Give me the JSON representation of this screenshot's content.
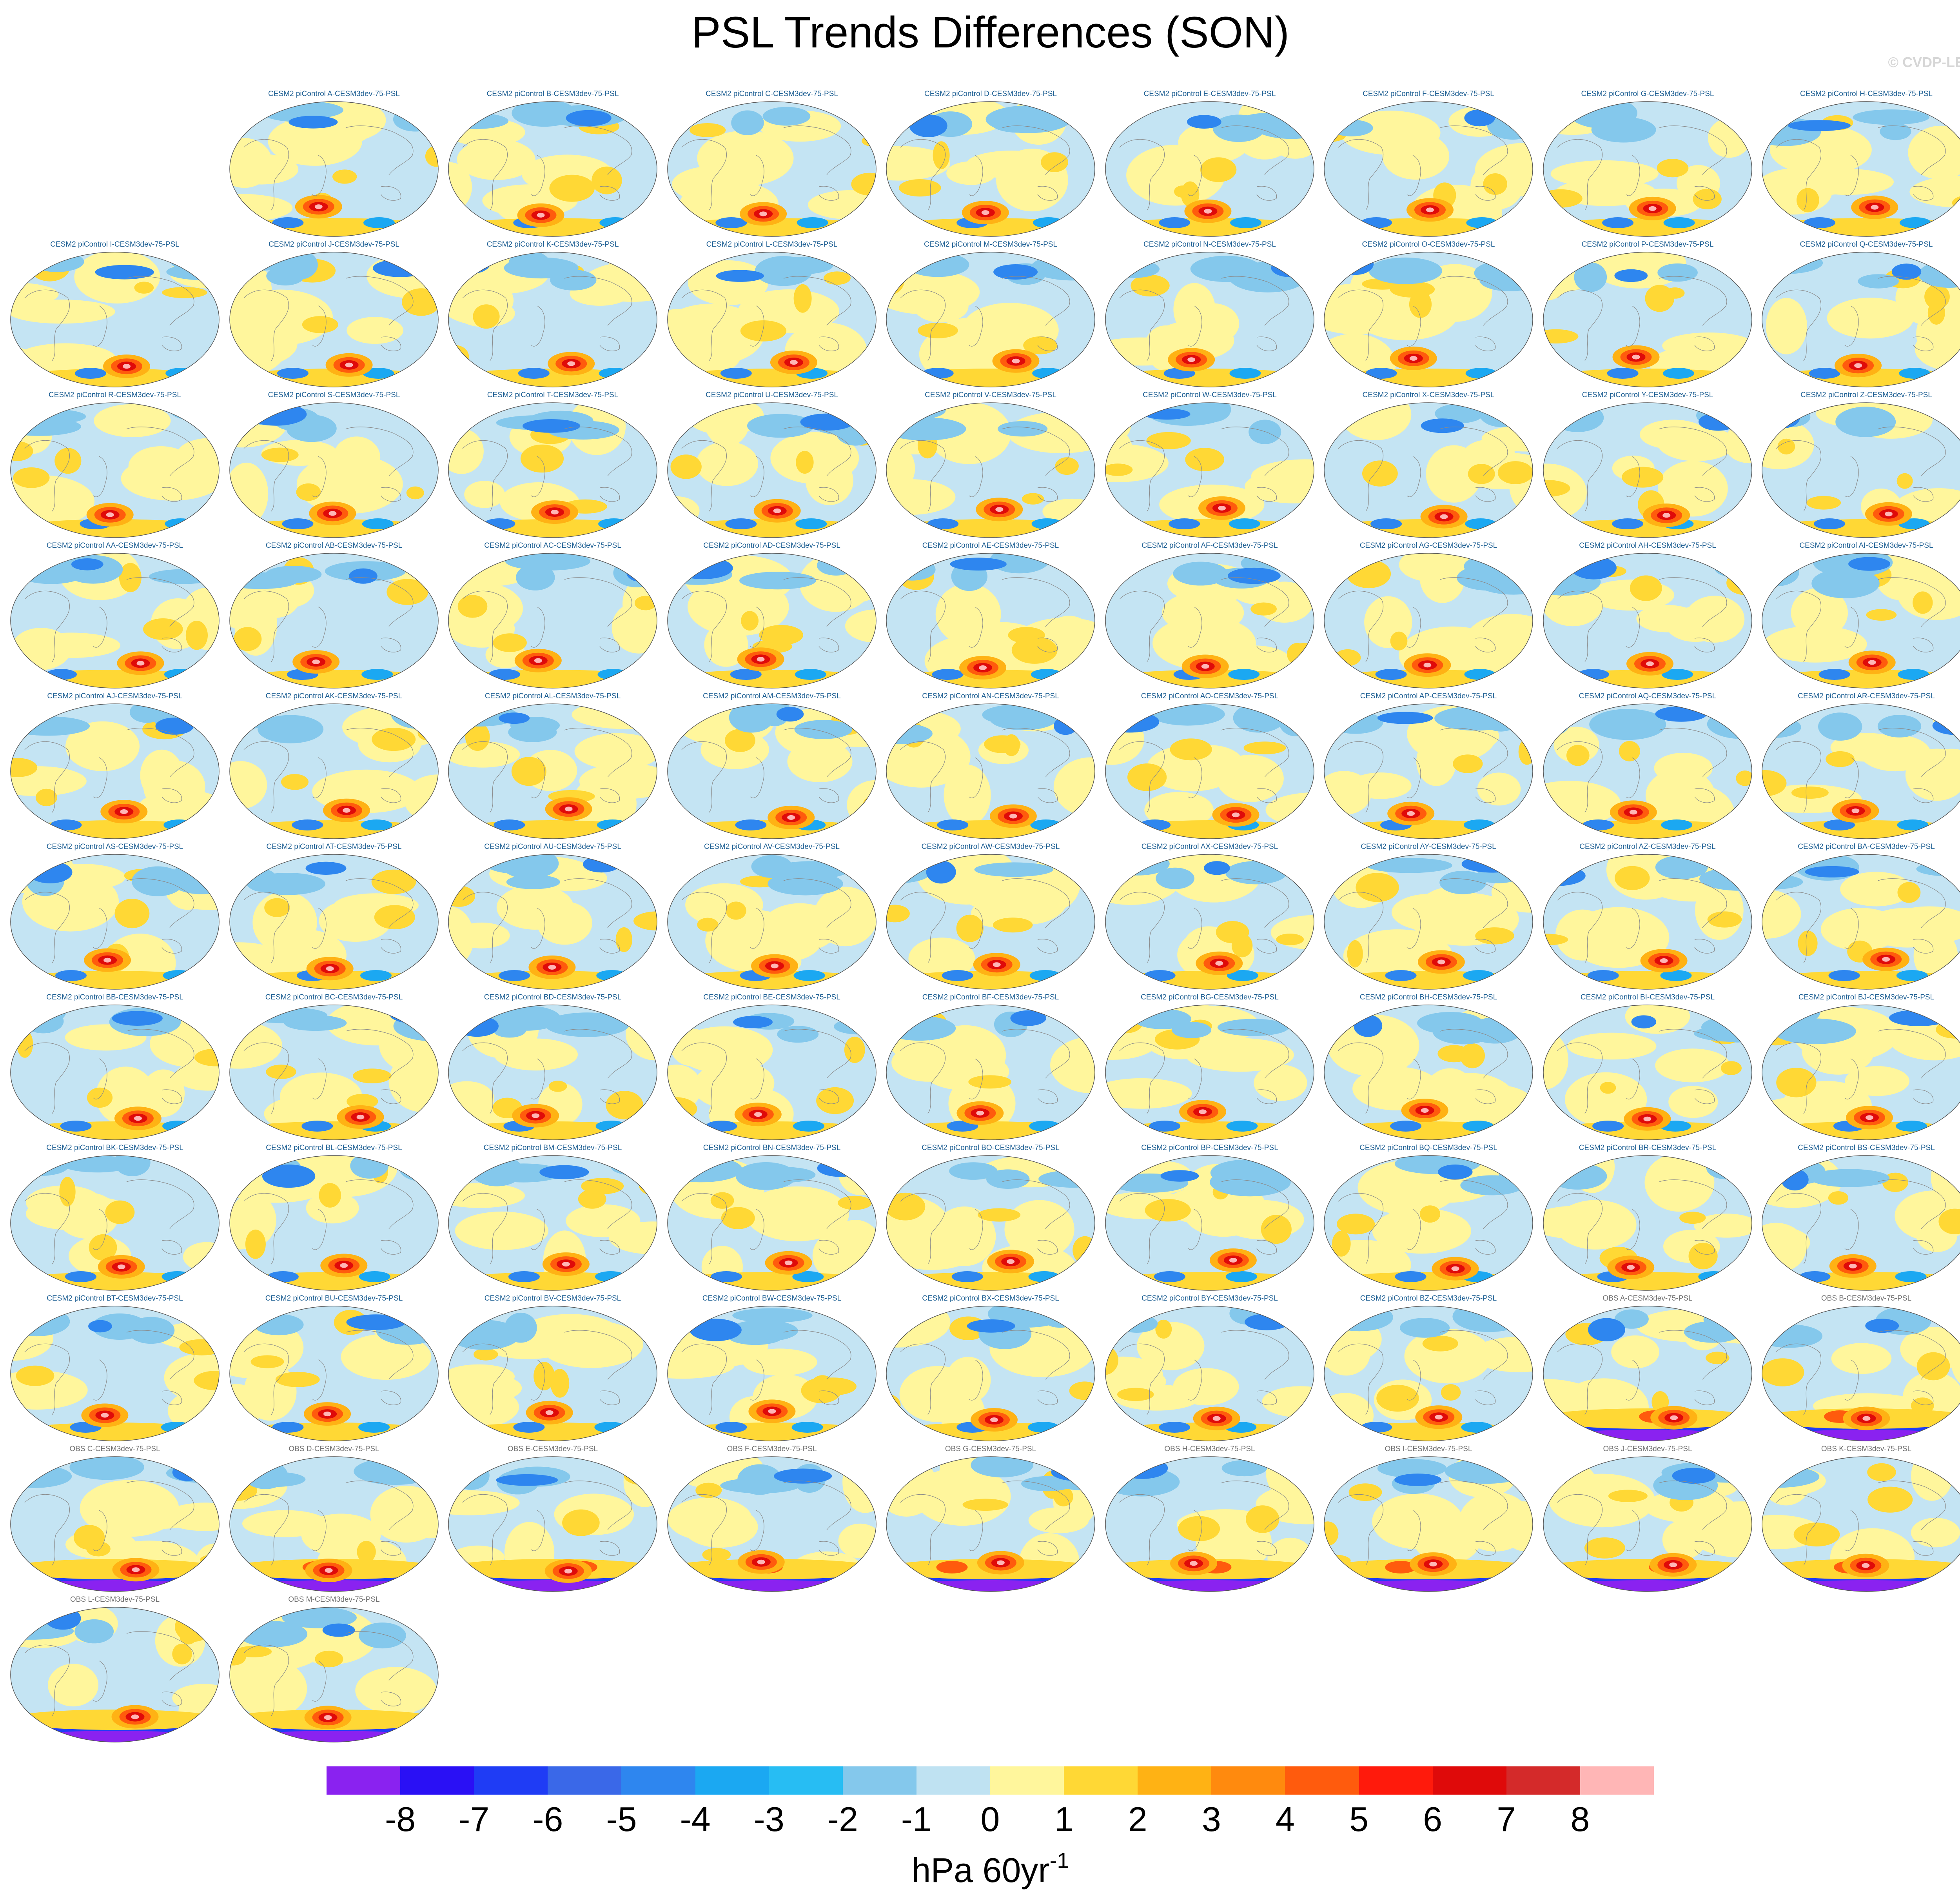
{
  "title": "PSL Trends Differences (SON)",
  "watermark": "© CVDP-LE",
  "chart_data": {
    "type": "heatmap",
    "title": "PSL Trends Differences (SON)",
    "projection": "global map panels",
    "colorbar": {
      "label_base": "hPa 60yr",
      "label_exponent": "-1",
      "ticks": [
        "-8",
        "-7",
        "-6",
        "-5",
        "-4",
        "-3",
        "-2",
        "-1",
        "0",
        "1",
        "2",
        "3",
        "4",
        "5",
        "6",
        "7",
        "8"
      ],
      "levels": [
        -8,
        -7,
        -6,
        -5,
        -4,
        -3,
        -2,
        -1,
        0,
        1,
        2,
        3,
        4,
        5,
        6,
        7,
        8
      ],
      "colors": [
        "#8a22f0",
        "#2a10f5",
        "#1f3cf5",
        "#3a68e8",
        "#2e86ef",
        "#1ba8f2",
        "#27bdf3",
        "#84c8ec",
        "#bfe2f2",
        "#fff69c",
        "#ffd835",
        "#ffb214",
        "#ff8a0e",
        "#ff5b0d",
        "#ff1a0c",
        "#df0a0a",
        "#d42a2a",
        "#ffb6b6"
      ]
    },
    "panels": [
      "CESM2 piControl A-CESM3dev-75-PSL",
      "CESM2 piControl B-CESM3dev-75-PSL",
      "CESM2 piControl C-CESM3dev-75-PSL",
      "CESM2 piControl D-CESM3dev-75-PSL",
      "CESM2 piControl E-CESM3dev-75-PSL",
      "CESM2 piControl F-CESM3dev-75-PSL",
      "CESM2 piControl G-CESM3dev-75-PSL",
      "CESM2 piControl H-CESM3dev-75-PSL",
      "CESM2 piControl I-CESM3dev-75-PSL",
      "CESM2 piControl J-CESM3dev-75-PSL",
      "CESM2 piControl K-CESM3dev-75-PSL",
      "CESM2 piControl L-CESM3dev-75-PSL",
      "CESM2 piControl M-CESM3dev-75-PSL",
      "CESM2 piControl N-CESM3dev-75-PSL",
      "CESM2 piControl O-CESM3dev-75-PSL",
      "CESM2 piControl P-CESM3dev-75-PSL",
      "CESM2 piControl Q-CESM3dev-75-PSL",
      "CESM2 piControl R-CESM3dev-75-PSL",
      "CESM2 piControl S-CESM3dev-75-PSL",
      "CESM2 piControl T-CESM3dev-75-PSL",
      "CESM2 piControl U-CESM3dev-75-PSL",
      "CESM2 piControl V-CESM3dev-75-PSL",
      "CESM2 piControl W-CESM3dev-75-PSL",
      "CESM2 piControl X-CESM3dev-75-PSL",
      "CESM2 piControl Y-CESM3dev-75-PSL",
      "CESM2 piControl Z-CESM3dev-75-PSL",
      "CESM2 piControl AA-CESM3dev-75-PSL",
      "CESM2 piControl AB-CESM3dev-75-PSL",
      "CESM2 piControl AC-CESM3dev-75-PSL",
      "CESM2 piControl AD-CESM3dev-75-PSL",
      "CESM2 piControl AE-CESM3dev-75-PSL",
      "CESM2 piControl AF-CESM3dev-75-PSL",
      "CESM2 piControl AG-CESM3dev-75-PSL",
      "CESM2 piControl AH-CESM3dev-75-PSL",
      "CESM2 piControl AI-CESM3dev-75-PSL",
      "CESM2 piControl AJ-CESM3dev-75-PSL",
      "CESM2 piControl AK-CESM3dev-75-PSL",
      "CESM2 piControl AL-CESM3dev-75-PSL",
      "CESM2 piControl AM-CESM3dev-75-PSL",
      "CESM2 piControl AN-CESM3dev-75-PSL",
      "CESM2 piControl AO-CESM3dev-75-PSL",
      "CESM2 piControl AP-CESM3dev-75-PSL",
      "CESM2 piControl AQ-CESM3dev-75-PSL",
      "CESM2 piControl AR-CESM3dev-75-PSL",
      "CESM2 piControl AS-CESM3dev-75-PSL",
      "CESM2 piControl AT-CESM3dev-75-PSL",
      "CESM2 piControl AU-CESM3dev-75-PSL",
      "CESM2 piControl AV-CESM3dev-75-PSL",
      "CESM2 piControl AW-CESM3dev-75-PSL",
      "CESM2 piControl AX-CESM3dev-75-PSL",
      "CESM2 piControl AY-CESM3dev-75-PSL",
      "CESM2 piControl AZ-CESM3dev-75-PSL",
      "CESM2 piControl BA-CESM3dev-75-PSL",
      "CESM2 piControl BB-CESM3dev-75-PSL",
      "CESM2 piControl BC-CESM3dev-75-PSL",
      "CESM2 piControl BD-CESM3dev-75-PSL",
      "CESM2 piControl BE-CESM3dev-75-PSL",
      "CESM2 piControl BF-CESM3dev-75-PSL",
      "CESM2 piControl BG-CESM3dev-75-PSL",
      "CESM2 piControl BH-CESM3dev-75-PSL",
      "CESM2 piControl BI-CESM3dev-75-PSL",
      "CESM2 piControl BJ-CESM3dev-75-PSL",
      "CESM2 piControl BK-CESM3dev-75-PSL",
      "CESM2 piControl BL-CESM3dev-75-PSL",
      "CESM2 piControl BM-CESM3dev-75-PSL",
      "CESM2 piControl BN-CESM3dev-75-PSL",
      "CESM2 piControl BO-CESM3dev-75-PSL",
      "CESM2 piControl BP-CESM3dev-75-PSL",
      "CESM2 piControl BQ-CESM3dev-75-PSL",
      "CESM2 piControl BR-CESM3dev-75-PSL",
      "CESM2 piControl BS-CESM3dev-75-PSL",
      "CESM2 piControl BT-CESM3dev-75-PSL",
      "CESM2 piControl BU-CESM3dev-75-PSL",
      "CESM2 piControl BV-CESM3dev-75-PSL",
      "CESM2 piControl BW-CESM3dev-75-PSL",
      "CESM2 piControl BX-CESM3dev-75-PSL",
      "CESM2 piControl BY-CESM3dev-75-PSL",
      "CESM2 piControl BZ-CESM3dev-75-PSL",
      "OBS A-CESM3dev-75-PSL",
      "OBS B-CESM3dev-75-PSL",
      "OBS C-CESM3dev-75-PSL",
      "OBS D-CESM3dev-75-PSL",
      "OBS E-CESM3dev-75-PSL",
      "OBS F-CESM3dev-75-PSL",
      "OBS G-CESM3dev-75-PSL",
      "OBS H-CESM3dev-75-PSL",
      "OBS I-CESM3dev-75-PSL",
      "OBS J-CESM3dev-75-PSL",
      "OBS K-CESM3dev-75-PSL",
      "OBS L-CESM3dev-75-PSL",
      "OBS M-CESM3dev-75-PSL"
    ]
  }
}
